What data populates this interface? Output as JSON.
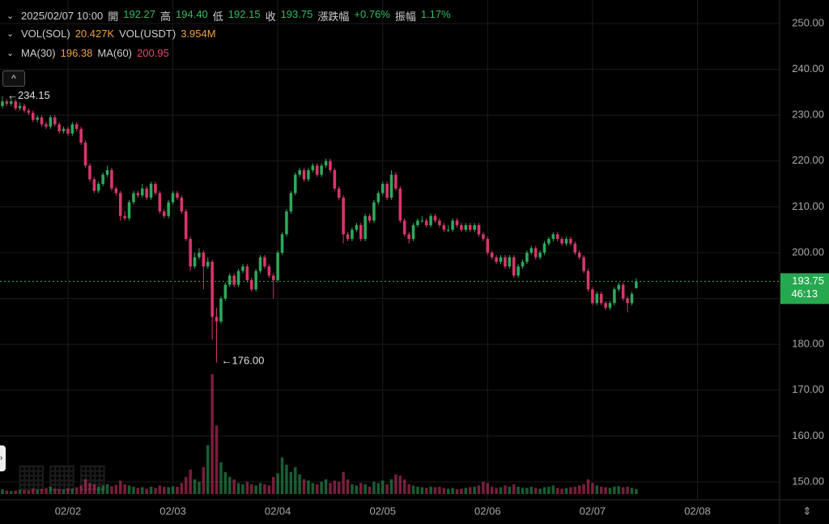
{
  "chart_data": {
    "type": "candlestick",
    "header": {
      "datetime": "2025/02/07 10:00",
      "fields": [
        {
          "label": "開",
          "value": "192.27"
        },
        {
          "label": "高",
          "value": "194.40"
        },
        {
          "label": "低",
          "value": "192.15"
        },
        {
          "label": "收",
          "value": "193.75"
        },
        {
          "label": "漲跌幅",
          "value": "+0.76%"
        },
        {
          "label": "振幅",
          "value": "1.17%"
        }
      ]
    },
    "volume_header": [
      {
        "label": "VOL(SOL)",
        "value": "20.427K"
      },
      {
        "label": "VOL(USDT)",
        "value": "3.954M"
      }
    ],
    "ma_header": [
      {
        "label": "MA(30)",
        "value": "196.38"
      },
      {
        "label": "MA(60)",
        "value": "200.95"
      }
    ],
    "up_color": "#2ea85a",
    "down_color": "#d8366a",
    "grid": true,
    "xlim": [
      -0.55,
      177.8
    ],
    "xticks": [
      {
        "value": 15,
        "label": "02/02"
      },
      {
        "value": 39,
        "label": "02/03"
      },
      {
        "value": 63,
        "label": "02/04"
      },
      {
        "value": 87,
        "label": "02/05"
      },
      {
        "value": 111,
        "label": "02/06"
      },
      {
        "value": 135,
        "label": "02/07"
      },
      {
        "value": 159,
        "label": "02/08"
      }
    ],
    "ylim": [
      146.11,
      255.12
    ],
    "yticks": [
      {
        "value": 150,
        "label": "150.00"
      },
      {
        "value": 160,
        "label": "160.00"
      },
      {
        "value": 170,
        "label": "170.00"
      },
      {
        "value": 180,
        "label": "180.00"
      },
      {
        "value": 190,
        "label": "190.00"
      },
      {
        "value": 200,
        "label": "200.00"
      },
      {
        "value": 210,
        "label": "210.00"
      },
      {
        "value": 220,
        "label": "220.00"
      },
      {
        "value": 230,
        "label": "230.00"
      },
      {
        "value": 240,
        "label": "240.00"
      },
      {
        "value": 250,
        "label": "250.00"
      }
    ],
    "last_price": 193.75,
    "countdown": "46:13",
    "annotations": [
      {
        "x": 0,
        "value": 234.15,
        "label": "234.15"
      },
      {
        "x": 49,
        "value": 176,
        "label": "176.00"
      }
    ],
    "candles": [
      [
        232,
        234.15,
        231.5,
        233
      ],
      [
        233,
        233.5,
        232,
        232.5
      ],
      [
        232.5,
        233.8,
        232,
        233
      ],
      [
        233,
        233.5,
        231,
        231.5
      ],
      [
        231.5,
        232.8,
        231,
        232
      ],
      [
        232,
        232.5,
        230.5,
        231
      ],
      [
        231,
        231.5,
        230,
        230.5
      ],
      [
        230.5,
        231,
        228.5,
        229
      ],
      [
        229,
        230,
        228.5,
        229.5
      ],
      [
        229.5,
        230,
        227.5,
        228
      ],
      [
        228,
        228.5,
        227,
        227.5
      ],
      [
        227.5,
        230,
        227,
        229.5
      ],
      [
        229.5,
        230,
        227.5,
        228
      ],
      [
        228,
        228.5,
        226,
        226.5
      ],
      [
        226.5,
        227.5,
        226,
        227
      ],
      [
        227,
        227.5,
        225.5,
        226
      ],
      [
        226,
        228.5,
        225.5,
        228
      ],
      [
        228,
        228.5,
        226.5,
        227
      ],
      [
        227,
        227.5,
        223.5,
        224
      ],
      [
        224,
        224.5,
        218.5,
        219
      ],
      [
        219,
        219.5,
        215.5,
        216
      ],
      [
        216,
        216.5,
        213,
        213.5
      ],
      [
        213.5,
        215.5,
        213,
        215
      ],
      [
        215,
        217.5,
        214.5,
        217
      ],
      [
        217,
        219,
        216.5,
        218
      ],
      [
        218,
        218.5,
        213.5,
        214
      ],
      [
        214,
        214.5,
        212.5,
        213
      ],
      [
        213,
        213.5,
        207,
        208
      ],
      [
        208,
        209,
        207,
        207.5
      ],
      [
        207.5,
        211.5,
        207,
        211
      ],
      [
        211,
        213.5,
        210.5,
        213
      ],
      [
        213,
        213.5,
        212,
        212.5
      ],
      [
        212.5,
        215,
        212,
        214
      ],
      [
        214,
        214.5,
        211.5,
        212
      ],
      [
        212,
        215.5,
        211.5,
        215
      ],
      [
        215,
        215.5,
        212.5,
        213
      ],
      [
        213,
        213.5,
        208.5,
        209
      ],
      [
        209,
        209.5,
        207.5,
        208
      ],
      [
        208,
        211.5,
        207.5,
        211
      ],
      [
        211,
        213.5,
        210.5,
        213
      ],
      [
        213,
        213.5,
        211.5,
        212
      ],
      [
        212,
        212.5,
        208.5,
        209
      ],
      [
        209,
        209.5,
        202.5,
        203
      ],
      [
        203,
        203.5,
        196,
        197
      ],
      [
        197,
        200,
        196.5,
        199
      ],
      [
        199,
        201,
        198.5,
        200
      ],
      [
        200,
        200.5,
        192,
        197
      ],
      [
        197,
        199,
        196.5,
        198
      ],
      [
        198,
        198.5,
        181,
        186
      ],
      [
        186,
        188,
        176,
        185
      ],
      [
        185,
        190.5,
        184.5,
        190
      ],
      [
        190,
        193.5,
        189.5,
        193
      ],
      [
        193,
        195.5,
        192.5,
        195
      ],
      [
        195,
        195.5,
        192.5,
        193
      ],
      [
        193,
        196.5,
        192.5,
        196
      ],
      [
        196,
        197.5,
        195.5,
        197
      ],
      [
        197,
        197.5,
        193.5,
        194
      ],
      [
        194,
        194.5,
        191.5,
        192
      ],
      [
        192,
        196.5,
        191.5,
        196
      ],
      [
        196,
        199.5,
        195.5,
        199
      ],
      [
        199,
        199.5,
        196.5,
        197
      ],
      [
        197,
        197.5,
        194.5,
        195
      ],
      [
        195,
        195.5,
        190,
        194
      ],
      [
        194,
        200.5,
        193.5,
        200
      ],
      [
        200,
        204.5,
        199.5,
        204
      ],
      [
        204,
        209.5,
        203.5,
        209
      ],
      [
        209,
        213.5,
        208.5,
        213
      ],
      [
        213,
        217.5,
        212.5,
        217
      ],
      [
        217,
        218.5,
        216.5,
        218
      ],
      [
        218,
        218.5,
        215.5,
        216
      ],
      [
        216,
        218.5,
        215.5,
        218
      ],
      [
        218,
        219.5,
        217.5,
        219
      ],
      [
        219,
        219.5,
        216.5,
        217
      ],
      [
        217,
        219.5,
        216.5,
        219
      ],
      [
        219,
        220.5,
        218.5,
        220
      ],
      [
        220,
        220.5,
        217.5,
        218
      ],
      [
        218,
        218.5,
        213.5,
        214
      ],
      [
        214,
        214.5,
        211.5,
        212
      ],
      [
        212,
        212.5,
        202,
        204
      ],
      [
        204,
        204.5,
        202.5,
        203
      ],
      [
        203,
        205.5,
        202.5,
        205
      ],
      [
        205,
        206.5,
        204.5,
        206
      ],
      [
        206,
        206.5,
        202.5,
        203
      ],
      [
        203,
        208.5,
        202.5,
        208
      ],
      [
        208,
        208.5,
        206.5,
        207
      ],
      [
        207,
        211.5,
        206.5,
        211
      ],
      [
        211,
        213.5,
        210.5,
        213
      ],
      [
        213,
        215.5,
        212.5,
        215
      ],
      [
        215,
        215.5,
        211.5,
        212
      ],
      [
        212,
        218,
        211.5,
        217
      ],
      [
        217,
        217.5,
        213.5,
        214
      ],
      [
        214,
        214.5,
        206.5,
        207
      ],
      [
        207,
        207.5,
        203.5,
        204
      ],
      [
        204,
        204.5,
        202,
        203
      ],
      [
        203,
        206.5,
        202.5,
        206
      ],
      [
        206,
        207.5,
        205.5,
        207
      ],
      [
        207,
        208,
        206.5,
        207
      ],
      [
        207,
        207.5,
        205.5,
        206
      ],
      [
        206,
        208.5,
        205.5,
        208
      ],
      [
        208,
        208.5,
        206.5,
        207
      ],
      [
        207,
        207.5,
        205.5,
        206
      ],
      [
        206,
        206.5,
        204.5,
        205
      ],
      [
        205,
        206,
        204.5,
        205
      ],
      [
        205,
        207.5,
        204.5,
        207
      ],
      [
        207,
        207.5,
        205.5,
        206
      ],
      [
        206,
        206.5,
        204.5,
        205
      ],
      [
        205,
        206.5,
        204.5,
        206
      ],
      [
        206,
        206.5,
        204.5,
        205
      ],
      [
        205,
        206.5,
        204.5,
        206
      ],
      [
        206,
        206.5,
        203.5,
        204
      ],
      [
        204,
        204.5,
        202.5,
        203
      ],
      [
        203,
        203.5,
        199.5,
        200
      ],
      [
        200,
        200.5,
        198.5,
        199
      ],
      [
        199,
        199.5,
        197.5,
        198
      ],
      [
        198,
        199.5,
        197.5,
        199
      ],
      [
        199,
        199.5,
        196.5,
        197
      ],
      [
        197,
        199.5,
        196.5,
        199
      ],
      [
        199,
        199.5,
        194.5,
        195
      ],
      [
        195,
        197.5,
        194.5,
        197
      ],
      [
        197,
        198.5,
        196.5,
        198
      ],
      [
        198,
        200.5,
        197.5,
        200
      ],
      [
        200,
        201.5,
        199.5,
        201
      ],
      [
        201,
        201.5,
        198.5,
        199
      ],
      [
        199,
        200.5,
        198.5,
        200
      ],
      [
        200,
        202.5,
        199.5,
        202
      ],
      [
        202,
        203.5,
        201.5,
        203
      ],
      [
        203,
        204.5,
        202.5,
        204
      ],
      [
        204,
        204.5,
        202.5,
        203
      ],
      [
        203,
        203.5,
        201.5,
        202
      ],
      [
        202,
        203.5,
        201.5,
        203
      ],
      [
        203,
        203.5,
        201.5,
        202
      ],
      [
        202,
        202.5,
        199.5,
        200
      ],
      [
        200,
        200.5,
        198.5,
        199
      ],
      [
        199,
        199.5,
        195.5,
        196
      ],
      [
        196,
        196.5,
        191.5,
        192
      ],
      [
        192,
        192.5,
        188.5,
        189
      ],
      [
        189,
        191.5,
        188.5,
        191
      ],
      [
        191,
        191.5,
        188.5,
        189
      ],
      [
        189,
        189.5,
        187.5,
        188
      ],
      [
        188,
        189.5,
        187.5,
        189
      ],
      [
        189,
        192.5,
        188.5,
        192
      ],
      [
        192,
        193.5,
        191.5,
        193
      ],
      [
        193,
        193.5,
        189.5,
        190
      ],
      [
        190,
        190.5,
        187,
        189
      ],
      [
        189,
        191.5,
        188.5,
        191
      ],
      [
        192.27,
        194.4,
        192.15,
        193.75
      ]
    ],
    "volume": [
      20,
      15,
      12,
      14,
      18,
      16,
      15,
      22,
      18,
      20,
      25,
      30,
      22,
      20,
      18,
      24,
      22,
      28,
      35,
      60,
      45,
      40,
      30,
      35,
      40,
      32,
      38,
      55,
      40,
      35,
      30,
      25,
      28,
      22,
      30,
      25,
      35,
      30,
      28,
      32,
      30,
      45,
      70,
      100,
      60,
      50,
      110,
      200,
      490,
      280,
      130,
      90,
      70,
      60,
      45,
      40,
      50,
      40,
      35,
      45,
      40,
      35,
      70,
      85,
      150,
      120,
      90,
      110,
      80,
      60,
      55,
      45,
      40,
      50,
      60,
      45,
      55,
      50,
      90,
      60,
      40,
      35,
      45,
      40,
      30,
      50,
      45,
      55,
      40,
      60,
      80,
      75,
      60,
      40,
      35,
      30,
      28,
      25,
      30,
      28,
      30,
      25,
      22,
      25,
      20,
      22,
      25,
      28,
      30,
      35,
      50,
      45,
      30,
      25,
      28,
      35,
      30,
      40,
      30,
      25,
      25,
      30,
      25,
      22,
      28,
      30,
      35,
      25,
      22,
      25,
      28,
      30,
      35,
      40,
      60,
      45,
      35,
      30,
      28,
      25,
      30,
      32,
      28,
      30,
      25,
      20.427
    ]
  }
}
